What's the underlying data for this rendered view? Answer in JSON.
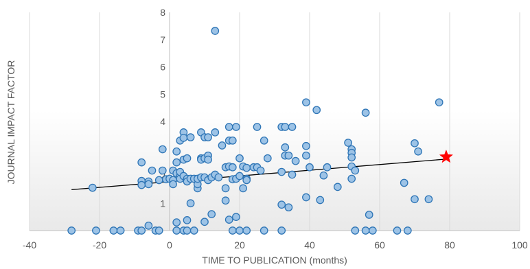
{
  "chart_data": {
    "type": "scatter",
    "title": "",
    "xlabel": "TIME TO PUBLICATION (months)",
    "ylabel": "JOURNAL IMPACT FACTOR",
    "xlim": [
      -40,
      100
    ],
    "ylim": [
      0,
      8
    ],
    "x_ticks": [
      -40,
      -20,
      0,
      20,
      40,
      60,
      80,
      100
    ],
    "y_ticks": [
      1,
      2,
      3,
      4,
      5,
      6,
      7,
      8
    ],
    "y_tick_labels": [
      "1",
      "2",
      "3",
      "4",
      "5",
      "6",
      "7",
      "8"
    ],
    "grid": "vertical",
    "legend": "none",
    "point_color": "#9dc3e6",
    "point_edge_color": "#2e75b6",
    "trendline": {
      "x": [
        -28,
        79
      ],
      "y": [
        1.5,
        2.62
      ],
      "color": "#000000"
    },
    "highlight": {
      "x": 79,
      "y": 2.7,
      "marker": "star",
      "color": "#ff0000"
    },
    "points": [
      [
        -28,
        0
      ],
      [
        -21,
        0
      ],
      [
        -16,
        0
      ],
      [
        -14,
        0
      ],
      [
        -9,
        0
      ],
      [
        -8,
        0
      ],
      [
        -6,
        0.18
      ],
      [
        -4,
        0
      ],
      [
        -3,
        0
      ],
      [
        2,
        0
      ],
      [
        4,
        0
      ],
      [
        5,
        0
      ],
      [
        7,
        0
      ],
      [
        18,
        0
      ],
      [
        20,
        0
      ],
      [
        22,
        0
      ],
      [
        27,
        0
      ],
      [
        32,
        0
      ],
      [
        53,
        0
      ],
      [
        56,
        0
      ],
      [
        58,
        0
      ],
      [
        65,
        0
      ],
      [
        68,
        0
      ],
      [
        -22,
        1.57
      ],
      [
        -8,
        2.5
      ],
      [
        -8,
        1.82
      ],
      [
        -8,
        1.67
      ],
      [
        -6,
        1.8
      ],
      [
        -6,
        1.7
      ],
      [
        -5,
        2.2
      ],
      [
        -3,
        1.85
      ],
      [
        -2,
        2.2
      ],
      [
        -2,
        2.98
      ],
      [
        -1,
        1.88
      ],
      [
        0,
        1.9
      ],
      [
        1,
        1.85
      ],
      [
        1,
        1.7
      ],
      [
        1,
        2.2
      ],
      [
        2,
        2.9
      ],
      [
        2,
        2.5
      ],
      [
        2,
        2.1
      ],
      [
        3,
        2.0
      ],
      [
        3,
        1.9
      ],
      [
        3,
        2.15
      ],
      [
        3,
        3.3
      ],
      [
        4,
        3.6
      ],
      [
        4,
        3.4
      ],
      [
        4,
        2.6
      ],
      [
        4,
        2.0
      ],
      [
        5,
        1.9
      ],
      [
        5,
        2.65
      ],
      [
        5,
        1.8
      ],
      [
        6,
        1.0
      ],
      [
        6,
        3.42
      ],
      [
        6,
        1.9
      ],
      [
        7,
        1.9
      ],
      [
        8,
        1.55
      ],
      [
        8,
        1.7
      ],
      [
        8,
        1.9
      ],
      [
        9,
        2.65
      ],
      [
        9,
        3.6
      ],
      [
        9,
        2.6
      ],
      [
        9,
        1.95
      ],
      [
        10,
        3.42
      ],
      [
        10,
        2.65
      ],
      [
        10,
        1.95
      ],
      [
        11,
        2.75
      ],
      [
        11,
        1.85
      ],
      [
        11,
        2.6
      ],
      [
        11,
        3.42
      ],
      [
        12,
        1.95
      ],
      [
        13,
        7.32
      ],
      [
        13,
        3.6
      ],
      [
        13,
        2.05
      ],
      [
        14,
        1.95
      ],
      [
        15,
        3.12
      ],
      [
        16,
        2.32
      ],
      [
        16,
        1.55
      ],
      [
        16,
        1.1
      ],
      [
        17,
        3.8
      ],
      [
        17,
        3.3
      ],
      [
        17,
        2.35
      ],
      [
        18,
        3.3
      ],
      [
        18,
        2.32
      ],
      [
        18,
        1.88
      ],
      [
        19,
        3.8
      ],
      [
        19,
        1.9
      ],
      [
        20,
        2.65
      ],
      [
        20,
        2.0
      ],
      [
        21,
        2.35
      ],
      [
        21,
        1.55
      ],
      [
        22,
        2.3
      ],
      [
        22,
        1.9
      ],
      [
        22,
        1.85
      ],
      [
        24,
        2.32
      ],
      [
        25,
        2.32
      ],
      [
        25,
        3.8
      ],
      [
        26,
        2.2
      ],
      [
        27,
        3.3
      ],
      [
        28,
        2.65
      ],
      [
        32,
        3.8
      ],
      [
        32,
        2.15
      ],
      [
        33,
        3.8
      ],
      [
        33,
        3.05
      ],
      [
        33,
        2.75
      ],
      [
        34,
        2.75
      ],
      [
        35,
        3.8
      ],
      [
        35,
        2.05
      ],
      [
        36,
        2.55
      ],
      [
        39,
        4.7
      ],
      [
        39,
        3.1
      ],
      [
        39,
        2.75
      ],
      [
        40,
        2.32
      ],
      [
        42,
        4.42
      ],
      [
        44,
        2.02
      ],
      [
        45,
        2.32
      ],
      [
        48,
        1.6
      ],
      [
        51,
        3.22
      ],
      [
        52,
        2.98
      ],
      [
        52,
        2.85
      ],
      [
        52,
        2.68
      ],
      [
        52,
        2.35
      ],
      [
        52,
        1.9
      ],
      [
        53,
        2.2
      ],
      [
        56,
        4.32
      ],
      [
        57,
        0.58
      ],
      [
        67,
        1.75
      ],
      [
        70,
        3.2
      ],
      [
        70,
        1.15
      ],
      [
        71,
        2.9
      ],
      [
        74,
        1.15
      ],
      [
        77,
        4.7
      ],
      [
        12,
        0.6
      ],
      [
        10,
        0.32
      ],
      [
        17,
        0.4
      ],
      [
        19,
        0.5
      ],
      [
        32,
        0.95
      ],
      [
        34,
        0.85
      ],
      [
        39,
        1.22
      ],
      [
        43,
        1.12
      ],
      [
        5,
        0.38
      ],
      [
        2,
        0.3
      ]
    ]
  }
}
